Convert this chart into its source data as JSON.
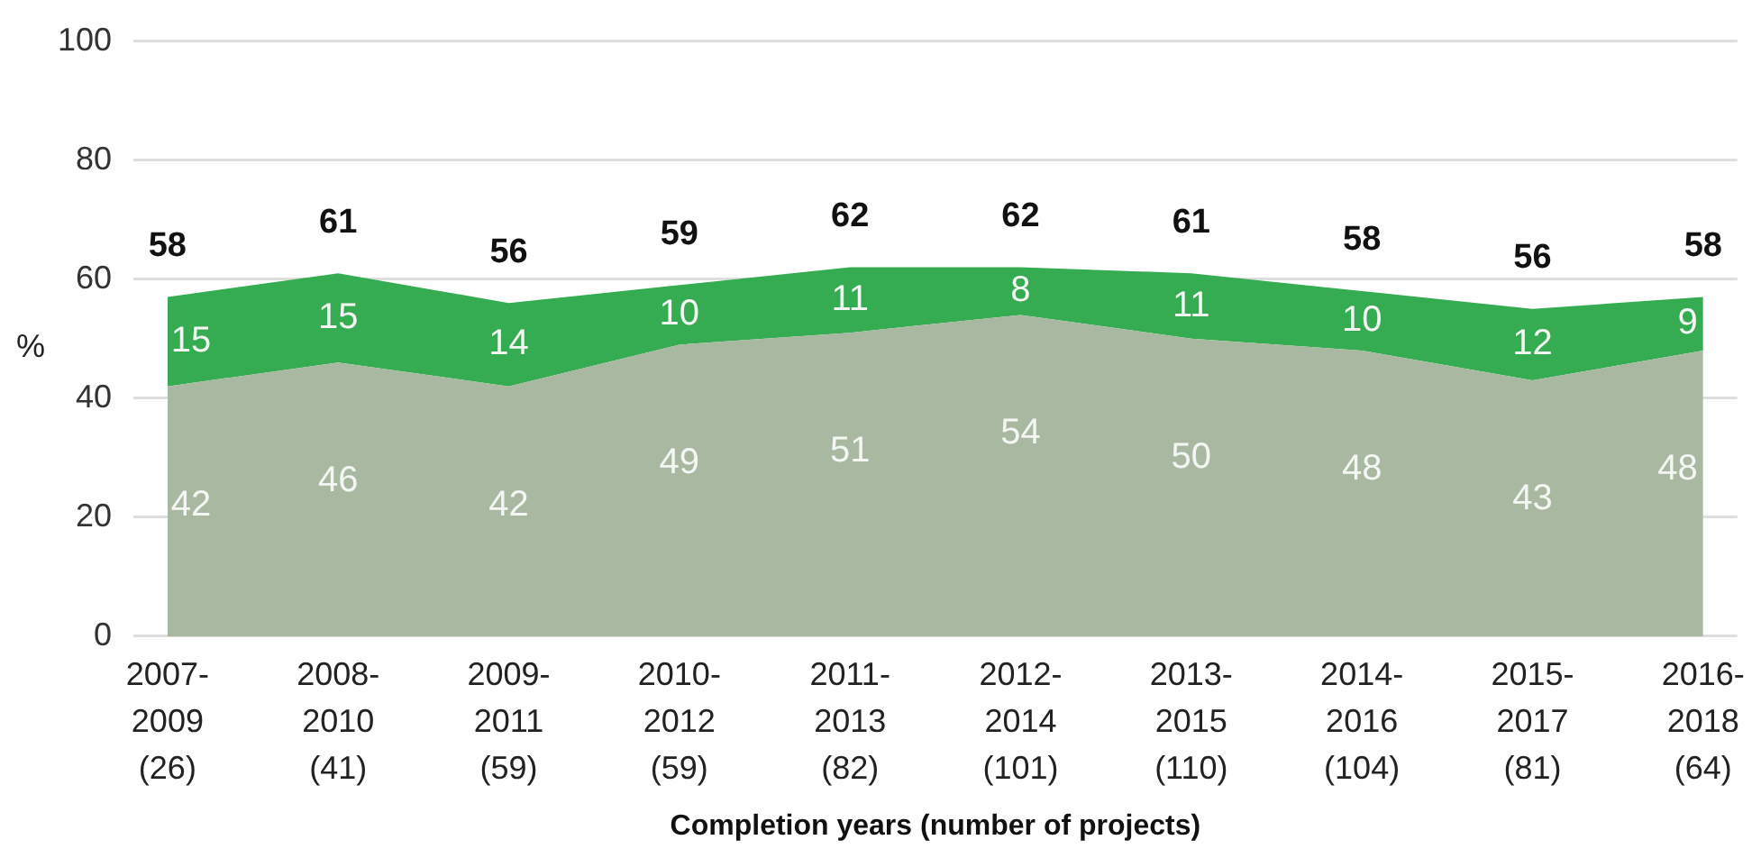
{
  "chart_data": {
    "type": "area",
    "stacked": true,
    "xlabel": "Completion years (number of projects)",
    "ylabel": "%",
    "categories": [
      "2007-\n2009\n(26)",
      "2008-\n2010\n(41)",
      "2009-\n2011\n(59)",
      "2010-\n2012\n(59)",
      "2011-\n2013\n(82)",
      "2012-\n2014\n(101)",
      "2013-\n2015\n(110)",
      "2014-\n2016\n(104)",
      "2015-\n2017\n(81)",
      "2016-\n2018\n(64)"
    ],
    "series": [
      {
        "color": "#a8b8a1",
        "values": [
          42,
          46,
          42,
          49,
          51,
          54,
          50,
          48,
          43,
          48
        ]
      },
      {
        "color": "#36ac52",
        "values": [
          15,
          15,
          14,
          10,
          11,
          8,
          11,
          10,
          12,
          9
        ]
      }
    ],
    "ylim": [
      0,
      100
    ],
    "yticks": [
      0,
      20,
      40,
      60,
      80,
      100
    ],
    "grid": "y",
    "data_labels": true,
    "totals": [
      "58",
      "61",
      "56",
      "59",
      "62",
      "62",
      "61",
      "58",
      "56",
      "58"
    ]
  }
}
